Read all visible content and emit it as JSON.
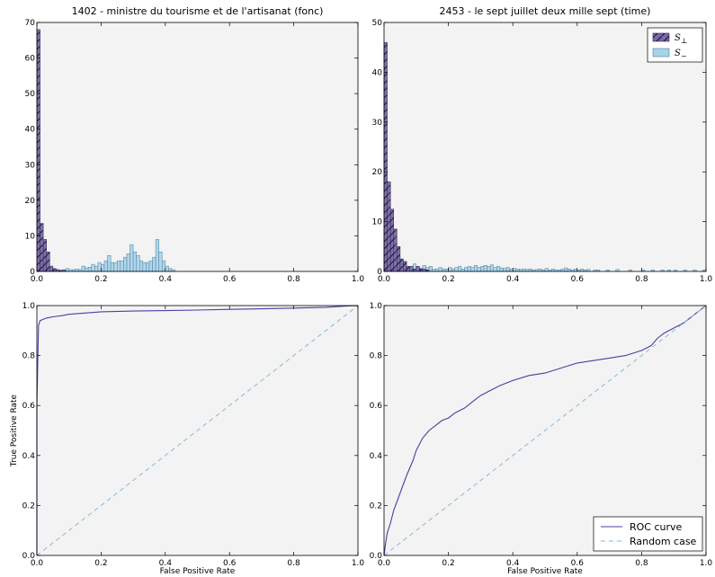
{
  "colors": {
    "s_perp": "#7b6aa6",
    "s_minus": "#a9d3e8",
    "roc": "#4a3f9f",
    "random": "#88b8d8",
    "panel_bg": "#f3f3f3"
  },
  "chart_data": [
    {
      "type": "bar",
      "title": "1402 - ministre du tourisme et de l'artisanat (fonc)",
      "xlim": [
        0,
        1
      ],
      "ylim": [
        0,
        70
      ],
      "xticks": [
        "0.0",
        "0.2",
        "0.4",
        "0.6",
        "0.8",
        "1.0"
      ],
      "yticks": [
        "0",
        "10",
        "20",
        "30",
        "40",
        "50",
        "60",
        "70"
      ],
      "bin_width": 0.01,
      "series": [
        {
          "name": "S_⊥",
          "hatch": true,
          "bins": [
            [
              0.0,
              68
            ],
            [
              0.01,
              13.5
            ],
            [
              0.02,
              9
            ],
            [
              0.03,
              5.5
            ],
            [
              0.04,
              1.5
            ],
            [
              0.05,
              0.8
            ],
            [
              0.06,
              0.5
            ],
            [
              0.07,
              0.3
            ],
            [
              0.08,
              0.3
            ]
          ]
        },
        {
          "name": "S_−",
          "hatch": false,
          "bins": [
            [
              0.0,
              1
            ],
            [
              0.01,
              2
            ],
            [
              0.02,
              2.5
            ],
            [
              0.03,
              1
            ],
            [
              0.04,
              1
            ],
            [
              0.05,
              0.5
            ],
            [
              0.06,
              0.5
            ],
            [
              0.07,
              0.3
            ],
            [
              0.08,
              0.5
            ],
            [
              0.09,
              0.8
            ],
            [
              0.1,
              0.5
            ],
            [
              0.11,
              0.5
            ],
            [
              0.12,
              0.7
            ],
            [
              0.13,
              0.5
            ],
            [
              0.14,
              1.5
            ],
            [
              0.15,
              1.0
            ],
            [
              0.16,
              1.2
            ],
            [
              0.17,
              2.0
            ],
            [
              0.18,
              1.5
            ],
            [
              0.19,
              2.5
            ],
            [
              0.2,
              2.0
            ],
            [
              0.21,
              3.0
            ],
            [
              0.22,
              4.5
            ],
            [
              0.23,
              2.5
            ],
            [
              0.24,
              2.5
            ],
            [
              0.25,
              3.0
            ],
            [
              0.26,
              3.0
            ],
            [
              0.27,
              4.0
            ],
            [
              0.28,
              5.0
            ],
            [
              0.29,
              7.5
            ],
            [
              0.3,
              5.5
            ],
            [
              0.31,
              4.5
            ],
            [
              0.32,
              3.0
            ],
            [
              0.33,
              2.5
            ],
            [
              0.34,
              2.5
            ],
            [
              0.35,
              3.0
            ],
            [
              0.36,
              4.0
            ],
            [
              0.37,
              9.0
            ],
            [
              0.38,
              5.5
            ],
            [
              0.39,
              3.0
            ],
            [
              0.4,
              1.5
            ],
            [
              0.41,
              0.8
            ],
            [
              0.42,
              0.5
            ]
          ]
        }
      ]
    },
    {
      "type": "bar",
      "title": "2453 - le sept juillet deux mille sept (time)",
      "xlim": [
        0,
        1
      ],
      "ylim": [
        0,
        50
      ],
      "xticks": [
        "0.0",
        "0.2",
        "0.4",
        "0.6",
        "0.8",
        "1.0"
      ],
      "yticks": [
        "0",
        "10",
        "20",
        "30",
        "40",
        "50"
      ],
      "bin_width": 0.01,
      "legend": {
        "position": "top-right",
        "labels": [
          "S",
          "S"
        ],
        "subs": [
          "⊥",
          "−"
        ]
      },
      "series": [
        {
          "name": "S_⊥",
          "hatch": true,
          "bins": [
            [
              0.0,
              46
            ],
            [
              0.01,
              18
            ],
            [
              0.02,
              12.5
            ],
            [
              0.03,
              8.5
            ],
            [
              0.04,
              5
            ],
            [
              0.05,
              2.5
            ],
            [
              0.06,
              2
            ],
            [
              0.07,
              1
            ],
            [
              0.08,
              1
            ],
            [
              0.09,
              0.5
            ],
            [
              0.1,
              1
            ],
            [
              0.11,
              0.5
            ],
            [
              0.12,
              0.5
            ],
            [
              0.13,
              0.3
            ]
          ]
        },
        {
          "name": "S_−",
          "hatch": false,
          "bins": [
            [
              0.0,
              5
            ],
            [
              0.01,
              10
            ],
            [
              0.02,
              9.5
            ],
            [
              0.03,
              5
            ],
            [
              0.04,
              3
            ],
            [
              0.05,
              2
            ],
            [
              0.06,
              1.5
            ],
            [
              0.07,
              1
            ],
            [
              0.08,
              1
            ],
            [
              0.09,
              1.5
            ],
            [
              0.1,
              1
            ],
            [
              0.11,
              0.7
            ],
            [
              0.12,
              1.2
            ],
            [
              0.13,
              0.8
            ],
            [
              0.14,
              1
            ],
            [
              0.15,
              0.5
            ],
            [
              0.16,
              0.5
            ],
            [
              0.17,
              0.8
            ],
            [
              0.18,
              0.5
            ],
            [
              0.19,
              0.5
            ],
            [
              0.2,
              0.8
            ],
            [
              0.21,
              0.5
            ],
            [
              0.22,
              0.8
            ],
            [
              0.23,
              1.0
            ],
            [
              0.24,
              0.5
            ],
            [
              0.25,
              0.8
            ],
            [
              0.26,
              1.0
            ],
            [
              0.27,
              0.8
            ],
            [
              0.28,
              1.2
            ],
            [
              0.29,
              0.8
            ],
            [
              0.3,
              1.0
            ],
            [
              0.31,
              1.2
            ],
            [
              0.32,
              1.0
            ],
            [
              0.33,
              1.3
            ],
            [
              0.34,
              0.8
            ],
            [
              0.35,
              1.0
            ],
            [
              0.36,
              0.7
            ],
            [
              0.37,
              0.6
            ],
            [
              0.38,
              0.8
            ],
            [
              0.39,
              0.5
            ],
            [
              0.4,
              0.6
            ],
            [
              0.41,
              0.5
            ],
            [
              0.42,
              0.4
            ],
            [
              0.43,
              0.5
            ],
            [
              0.44,
              0.4
            ],
            [
              0.45,
              0.5
            ],
            [
              0.46,
              0.3
            ],
            [
              0.47,
              0.4
            ],
            [
              0.48,
              0.5
            ],
            [
              0.49,
              0.3
            ],
            [
              0.5,
              0.6
            ],
            [
              0.51,
              0.3
            ],
            [
              0.52,
              0.5
            ],
            [
              0.53,
              0.3
            ],
            [
              0.54,
              0.3
            ],
            [
              0.55,
              0.5
            ],
            [
              0.56,
              0.7
            ],
            [
              0.57,
              0.5
            ],
            [
              0.58,
              0.3
            ],
            [
              0.59,
              0.5
            ],
            [
              0.6,
              0.3
            ],
            [
              0.61,
              0.5
            ],
            [
              0.62,
              0.3
            ],
            [
              0.63,
              0.4
            ],
            [
              0.65,
              0.3
            ],
            [
              0.66,
              0.3
            ],
            [
              0.69,
              0.3
            ],
            [
              0.72,
              0.4
            ],
            [
              0.76,
              0.3
            ],
            [
              0.8,
              0.3
            ],
            [
              0.83,
              0.3
            ],
            [
              0.86,
              0.3
            ],
            [
              0.88,
              0.3
            ],
            [
              0.9,
              0.3
            ],
            [
              0.93,
              0.3
            ],
            [
              0.96,
              0.3
            ],
            [
              0.99,
              0.3
            ]
          ]
        }
      ]
    },
    {
      "type": "line",
      "title": "",
      "xlabel": "False Positive Rate",
      "ylabel": "True Positive Rate",
      "xlim": [
        0,
        1
      ],
      "ylim": [
        0,
        1
      ],
      "xticks": [
        "0.0",
        "0.2",
        "0.4",
        "0.6",
        "0.8",
        "1.0"
      ],
      "yticks": [
        "0.0",
        "0.2",
        "0.4",
        "0.6",
        "0.8",
        "1.0"
      ],
      "series": [
        {
          "name": "ROC curve",
          "x": [
            0,
            0.0,
            0.005,
            0.01,
            0.02,
            0.03,
            0.05,
            0.08,
            0.1,
            0.15,
            0.2,
            0.3,
            0.4,
            0.5,
            0.6,
            0.7,
            0.8,
            0.9,
            0.95,
            1.0
          ],
          "y": [
            0,
            0.6,
            0.92,
            0.94,
            0.945,
            0.95,
            0.955,
            0.96,
            0.965,
            0.97,
            0.975,
            0.978,
            0.98,
            0.982,
            0.985,
            0.987,
            0.99,
            0.993,
            0.997,
            1.0
          ]
        },
        {
          "name": "Random case",
          "x": [
            0,
            1
          ],
          "y": [
            0,
            1
          ],
          "dashed": true
        }
      ]
    },
    {
      "type": "line",
      "title": "",
      "xlabel": "False Positive Rate",
      "xlim": [
        0,
        1
      ],
      "ylim": [
        0,
        1
      ],
      "xticks": [
        "0.0",
        "0.2",
        "0.4",
        "0.6",
        "0.8",
        "1.0"
      ],
      "yticks": [
        "0.0",
        "0.2",
        "0.4",
        "0.6",
        "0.8",
        "1.0"
      ],
      "legend": {
        "position": "bottom-right",
        "labels": [
          "ROC curve",
          "Random case"
        ]
      },
      "series": [
        {
          "name": "ROC curve",
          "x": [
            0,
            0.005,
            0.01,
            0.02,
            0.03,
            0.05,
            0.07,
            0.09,
            0.1,
            0.12,
            0.14,
            0.16,
            0.18,
            0.2,
            0.22,
            0.25,
            0.28,
            0.3,
            0.33,
            0.36,
            0.4,
            0.45,
            0.5,
            0.55,
            0.6,
            0.65,
            0.7,
            0.75,
            0.8,
            0.83,
            0.85,
            0.87,
            0.9,
            0.93,
            0.96,
            1.0
          ],
          "y": [
            0,
            0.05,
            0.09,
            0.13,
            0.18,
            0.25,
            0.32,
            0.38,
            0.42,
            0.47,
            0.5,
            0.52,
            0.54,
            0.55,
            0.57,
            0.59,
            0.62,
            0.64,
            0.66,
            0.68,
            0.7,
            0.72,
            0.73,
            0.75,
            0.77,
            0.78,
            0.79,
            0.8,
            0.82,
            0.84,
            0.87,
            0.89,
            0.91,
            0.93,
            0.96,
            1.0
          ]
        },
        {
          "name": "Random case",
          "x": [
            0,
            1
          ],
          "y": [
            0,
            1
          ],
          "dashed": true
        }
      ]
    }
  ]
}
